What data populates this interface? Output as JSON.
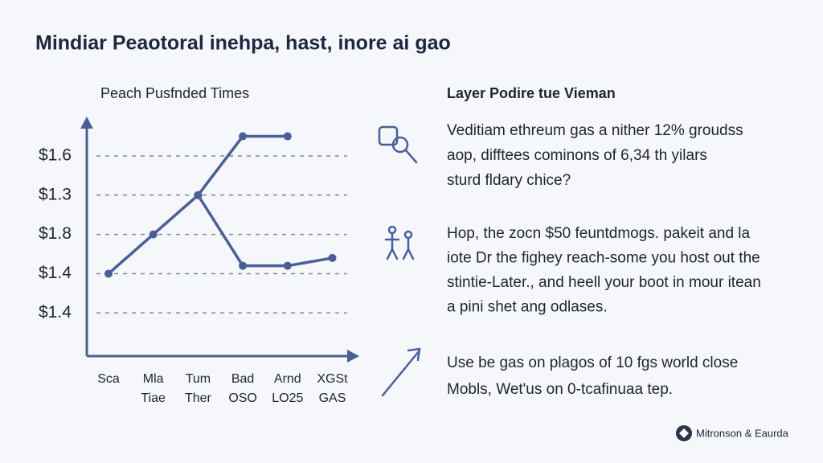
{
  "title": "Mindiar Peaotoral inehpa, hast, inore ai gao",
  "chart_data": {
    "type": "line",
    "title": "Peach Pusfnded Times",
    "categories": [
      [
        "Sca"
      ],
      [
        "Mla",
        "Tiae"
      ],
      [
        "Tum",
        "Ther"
      ],
      [
        "Bad",
        "OSO"
      ],
      [
        "Arnd",
        "LO25"
      ],
      [
        "XGSt",
        "GAS"
      ]
    ],
    "y_categories": [
      "$1.4",
      "$1.4",
      "$1.8",
      "$1.3",
      "$1.6"
    ],
    "ylim": [
      -1.1,
      4.9
    ],
    "grid": true,
    "series": [
      {
        "color": "#4a5f96",
        "values": [
          1.0,
          2.0,
          3.0,
          4.5,
          4.5,
          null
        ]
      },
      {
        "color": "#4a5f96",
        "values": [
          null,
          null,
          3.0,
          1.2,
          1.2,
          1.4
        ]
      }
    ]
  },
  "panel": {
    "heading": "Layer Podire tue Vieman",
    "items": [
      {
        "lines": [
          "Veditiam ethreum gas a nither 12% groudss",
          "aop, difftees cominons of 6,34 th yilars",
          "sturd fldary chice?"
        ]
      },
      {
        "lines": [
          "Hop, the zocn $50 feuntdmogs. pakeit and la",
          "iote Dr the fighey reach-some you host out the",
          "stintie-Later., and heell your boot in mour itean",
          "a pini shet ang odlases."
        ]
      },
      {
        "lines": [
          "Use be gas on plagos of 10 fgs world close",
          "Mobls, Wet'us on 0-tcafinuaa tep."
        ]
      }
    ]
  },
  "footer": {
    "brand": "Mitronson & Eaurda"
  }
}
